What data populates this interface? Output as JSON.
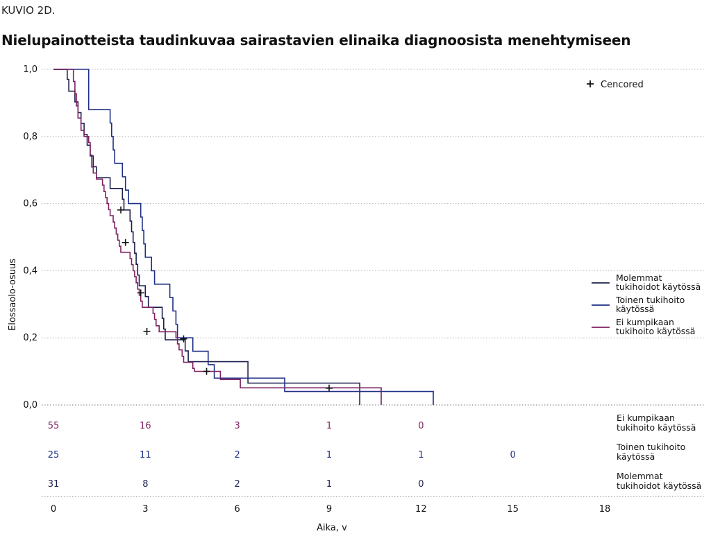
{
  "figure": {
    "label": "KUVIO 2D.",
    "title": "Nielupainotteista taudinkuvaa sairastavien elinaika diagnoosista menehtymiseen"
  },
  "colors": {
    "both": "#1c1f4e",
    "second": "#1e2f86",
    "neither": "#7e2161",
    "grid": "#b4b4b4",
    "text": "#111111"
  },
  "chart_data": {
    "type": "line",
    "step": true,
    "xlabel": "Aika, v",
    "ylabel": "Elossaolo-osuus",
    "xlim": [
      0,
      18
    ],
    "ylim": [
      0,
      1
    ],
    "x_ticks": [
      "0",
      "3",
      "6",
      "9",
      "12",
      "15",
      "18"
    ],
    "y_ticks": [
      "0,0",
      "0,2",
      "0,4",
      "0,6",
      "0,8",
      "1,0"
    ],
    "grid": "horizontal dotted",
    "censor_label": "Cencored",
    "legend_position": "right",
    "series": [
      {
        "key": "both",
        "name": "Molemmat tukihoidot käytössä",
        "legend_lines": [
          "Molemmat",
          "tukihoidot käytössä"
        ],
        "steps": [
          [
            0,
            1.0
          ],
          [
            0.4,
            1.0
          ],
          [
            0.45,
            0.97
          ],
          [
            0.5,
            0.935
          ],
          [
            0.7,
            0.903
          ],
          [
            0.8,
            0.871
          ],
          [
            0.9,
            0.839
          ],
          [
            1.0,
            0.806
          ],
          [
            1.1,
            0.774
          ],
          [
            1.2,
            0.742
          ],
          [
            1.3,
            0.71
          ],
          [
            1.4,
            0.677
          ],
          [
            1.8,
            0.677
          ],
          [
            1.85,
            0.645
          ],
          [
            2.2,
            0.645
          ],
          [
            2.25,
            0.613
          ],
          [
            2.3,
            0.581
          ],
          [
            2.5,
            0.548
          ],
          [
            2.55,
            0.516
          ],
          [
            2.6,
            0.484
          ],
          [
            2.65,
            0.452
          ],
          [
            2.7,
            0.419
          ],
          [
            2.75,
            0.387
          ],
          [
            2.8,
            0.355
          ],
          [
            2.95,
            0.355
          ],
          [
            3.0,
            0.323
          ],
          [
            3.1,
            0.291
          ],
          [
            3.5,
            0.291
          ],
          [
            3.55,
            0.258
          ],
          [
            3.6,
            0.226
          ],
          [
            3.65,
            0.194
          ],
          [
            4.2,
            0.194
          ],
          [
            4.3,
            0.161
          ],
          [
            4.4,
            0.129
          ],
          [
            6.3,
            0.129
          ],
          [
            6.35,
            0.065
          ],
          [
            10.0,
            0.065
          ],
          [
            10.0,
            0.0
          ]
        ],
        "censored": [
          [
            2.2,
            0.581
          ],
          [
            2.35,
            0.484
          ],
          [
            2.85,
            0.334
          ],
          [
            3.05,
            0.219
          ],
          [
            4.25,
            0.197
          ],
          [
            9.0,
            0.05
          ]
        ]
      },
      {
        "key": "second",
        "name": "Toinen tukihoito käytössä",
        "legend_lines": [
          "Toinen tukihoito",
          "käytössä"
        ],
        "steps": [
          [
            0,
            1.0
          ],
          [
            1.1,
            1.0
          ],
          [
            1.15,
            0.88
          ],
          [
            1.8,
            0.88
          ],
          [
            1.85,
            0.84
          ],
          [
            1.9,
            0.8
          ],
          [
            1.95,
            0.76
          ],
          [
            2.0,
            0.72
          ],
          [
            2.2,
            0.72
          ],
          [
            2.25,
            0.68
          ],
          [
            2.35,
            0.64
          ],
          [
            2.45,
            0.6
          ],
          [
            2.8,
            0.6
          ],
          [
            2.85,
            0.56
          ],
          [
            2.9,
            0.52
          ],
          [
            2.95,
            0.48
          ],
          [
            3.0,
            0.44
          ],
          [
            3.15,
            0.44
          ],
          [
            3.2,
            0.4
          ],
          [
            3.3,
            0.36
          ],
          [
            3.75,
            0.36
          ],
          [
            3.8,
            0.32
          ],
          [
            3.9,
            0.28
          ],
          [
            4.0,
            0.24
          ],
          [
            4.05,
            0.2
          ],
          [
            4.5,
            0.2
          ],
          [
            4.55,
            0.16
          ],
          [
            5.0,
            0.16
          ],
          [
            5.05,
            0.12
          ],
          [
            5.2,
            0.12
          ],
          [
            5.25,
            0.08
          ],
          [
            7.5,
            0.08
          ],
          [
            7.55,
            0.04
          ],
          [
            12.4,
            0.04
          ],
          [
            12.4,
            0.0
          ]
        ],
        "censored": []
      },
      {
        "key": "neither",
        "name": "Ei kumpikaan tukihoito käytössä",
        "legend_lines": [
          "Ei kumpikaan",
          "tukihoito käytössä"
        ],
        "steps": [
          [
            0,
            1.0
          ],
          [
            0.6,
            1.0
          ],
          [
            0.65,
            0.964
          ],
          [
            0.7,
            0.927
          ],
          [
            0.75,
            0.891
          ],
          [
            0.8,
            0.855
          ],
          [
            0.9,
            0.818
          ],
          [
            1.0,
            0.8
          ],
          [
            1.15,
            0.782
          ],
          [
            1.2,
            0.745
          ],
          [
            1.25,
            0.709
          ],
          [
            1.3,
            0.691
          ],
          [
            1.4,
            0.673
          ],
          [
            1.55,
            0.673
          ],
          [
            1.6,
            0.655
          ],
          [
            1.65,
            0.636
          ],
          [
            1.7,
            0.618
          ],
          [
            1.75,
            0.6
          ],
          [
            1.8,
            0.582
          ],
          [
            1.85,
            0.564
          ],
          [
            1.95,
            0.545
          ],
          [
            2.0,
            0.527
          ],
          [
            2.05,
            0.509
          ],
          [
            2.1,
            0.491
          ],
          [
            2.15,
            0.473
          ],
          [
            2.2,
            0.455
          ],
          [
            2.45,
            0.455
          ],
          [
            2.5,
            0.436
          ],
          [
            2.55,
            0.418
          ],
          [
            2.6,
            0.4
          ],
          [
            2.65,
            0.382
          ],
          [
            2.7,
            0.364
          ],
          [
            2.75,
            0.345
          ],
          [
            2.8,
            0.327
          ],
          [
            2.85,
            0.309
          ],
          [
            2.9,
            0.291
          ],
          [
            3.2,
            0.291
          ],
          [
            3.25,
            0.273
          ],
          [
            3.3,
            0.255
          ],
          [
            3.35,
            0.236
          ],
          [
            3.45,
            0.218
          ],
          [
            3.95,
            0.218
          ],
          [
            4.0,
            0.2
          ],
          [
            4.05,
            0.182
          ],
          [
            4.1,
            0.164
          ],
          [
            4.2,
            0.145
          ],
          [
            4.25,
            0.127
          ],
          [
            4.5,
            0.127
          ],
          [
            4.55,
            0.109
          ],
          [
            4.6,
            0.1
          ],
          [
            5.4,
            0.1
          ],
          [
            5.45,
            0.076
          ],
          [
            6.0,
            0.076
          ],
          [
            6.1,
            0.051
          ],
          [
            10.7,
            0.051
          ],
          [
            10.7,
            0.0
          ]
        ],
        "censored": [
          [
            5.0,
            0.1
          ]
        ]
      }
    ]
  },
  "risk_table": {
    "rows": [
      {
        "key": "neither",
        "label_lines": [
          "Ei kumpikaan",
          "tukihoito käytössä"
        ],
        "values": [
          "55",
          "16",
          "3",
          "1",
          "0",
          ""
        ]
      },
      {
        "key": "second",
        "label_lines": [
          "Toinen tukihoito",
          "käytössä"
        ],
        "values": [
          "25",
          "11",
          "2",
          "1",
          "1",
          "0"
        ]
      },
      {
        "key": "both",
        "label_lines": [
          "Molemmat",
          "tukihoidot käytössä"
        ],
        "values": [
          "31",
          "8",
          "2",
          "1",
          "0",
          ""
        ]
      }
    ]
  }
}
